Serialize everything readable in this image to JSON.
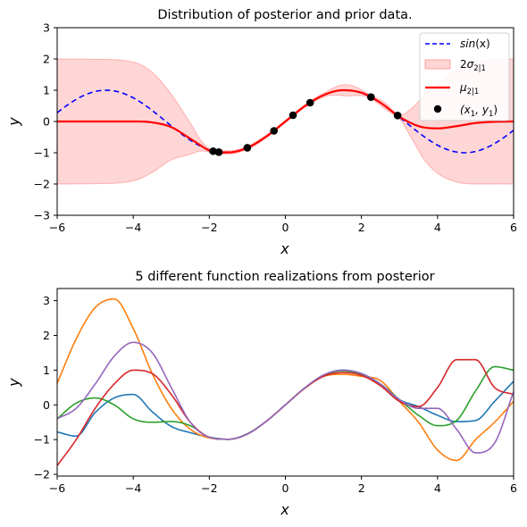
{
  "chart_data": [
    {
      "type": "line",
      "title": "Distribution of posterior and prior data.",
      "xlabel": "x",
      "ylabel": "y",
      "xlim": [
        -6,
        6
      ],
      "ylim": [
        -3,
        3
      ],
      "xticks": [
        "−6",
        "−4",
        "−2",
        "0",
        "2",
        "4",
        "6"
      ],
      "yticks": [
        "−3",
        "−2",
        "−1",
        "0",
        "1",
        "2",
        "3"
      ],
      "grid": false,
      "legend_position": "top-right",
      "legend": {
        "sin": {
          "label": "sin",
          "arg": "(x)"
        },
        "band": {
          "pre": "2",
          "sym": "σ",
          "sub": "2|1"
        },
        "mean": {
          "sym": "μ",
          "sub": "2|1"
        },
        "obs": {
          "label": "(x",
          "s1": "1",
          "mid": ", y",
          "s2": "1",
          "end": ")"
        }
      },
      "colors": {
        "sin": "#0000ff",
        "mean": "#ff0000",
        "band": "#ff0000",
        "points": "#000000"
      },
      "observations": {
        "x": [
          -1.9,
          -1.75,
          -1.0,
          -0.3,
          0.2,
          0.65,
          2.25,
          2.95
        ],
        "y": [
          -0.95,
          -0.98,
          -0.84,
          -0.3,
          0.2,
          0.6,
          0.78,
          0.19
        ]
      },
      "mean": {
        "x": [
          -6,
          -4,
          -3.5,
          -3,
          -2.5,
          -2,
          -1.9,
          -1.5,
          -1,
          -0.5,
          0,
          0.5,
          1,
          1.5,
          2,
          2.5,
          2.95,
          3.3,
          3.6,
          4,
          4.5,
          5,
          5.5,
          6
        ],
        "y": [
          0,
          0,
          -0.03,
          -0.18,
          -0.55,
          -0.93,
          -0.97,
          -0.99,
          -0.84,
          -0.48,
          0,
          0.48,
          0.84,
          1.0,
          0.92,
          0.6,
          0.19,
          -0.05,
          -0.18,
          -0.22,
          -0.15,
          -0.05,
          -0.01,
          0
        ]
      },
      "std2": {
        "x": [
          -6,
          -5,
          -4,
          -3.5,
          -3,
          -2.5,
          -2.2,
          -1.9,
          -1,
          0,
          1,
          1.6,
          2.25,
          2.6,
          2.95,
          3.3,
          3.7,
          4.2,
          5,
          6
        ],
        "y": [
          2.0,
          1.99,
          1.9,
          1.6,
          1.05,
          0.5,
          0.15,
          0.05,
          0.05,
          0.04,
          0.06,
          0.18,
          0.05,
          0.1,
          0.04,
          0.45,
          1.1,
          1.6,
          1.95,
          2.0
        ]
      }
    },
    {
      "type": "line",
      "title": "5 different function realizations from posterior",
      "xlabel": "x",
      "ylabel": "y",
      "xlim": [
        -6,
        6
      ],
      "ylim": [
        -2.05,
        3.35
      ],
      "xticks": [
        "−6",
        "−4",
        "−2",
        "0",
        "2",
        "4",
        "6"
      ],
      "yticks": [
        "−2",
        "−1",
        "0",
        "1",
        "2",
        "3"
      ],
      "grid": false,
      "series": [
        {
          "color": "#1f77b4",
          "x": [
            -6,
            -5.5,
            -5,
            -4.5,
            -4,
            -3.5,
            -3,
            -2.5,
            -2,
            -1.5,
            -1,
            -0.5,
            0,
            0.5,
            1,
            1.5,
            2,
            2.5,
            3,
            3.5,
            4,
            4.5,
            5,
            5.5,
            6
          ],
          "y": [
            -0.78,
            -0.9,
            -0.22,
            0.2,
            0.3,
            -0.2,
            -0.62,
            -0.8,
            -0.93,
            -0.99,
            -0.83,
            -0.47,
            0.0,
            0.48,
            0.85,
            1.0,
            0.9,
            0.6,
            0.15,
            -0.05,
            -0.3,
            -0.48,
            -0.45,
            0.1,
            0.68
          ]
        },
        {
          "color": "#ff7f0e",
          "x": [
            -6,
            -5.5,
            -5,
            -4.5,
            -4,
            -3.5,
            -3,
            -2.5,
            -2,
            -1.5,
            -1,
            -0.5,
            0,
            0.5,
            1,
            1.5,
            2,
            2.5,
            3,
            3.5,
            4,
            4.5,
            5,
            5.5,
            6
          ],
          "y": [
            0.62,
            1.9,
            2.8,
            3.05,
            2.2,
            0.9,
            -0.1,
            -0.7,
            -0.95,
            -0.99,
            -0.84,
            -0.47,
            0.0,
            0.47,
            0.82,
            0.88,
            0.82,
            0.7,
            0.1,
            -0.5,
            -1.3,
            -1.6,
            -1.0,
            -0.5,
            0.1
          ]
        },
        {
          "color": "#2ca02c",
          "x": [
            -6,
            -5.5,
            -5,
            -4.5,
            -4,
            -3.5,
            -3,
            -2.5,
            -2,
            -1.5,
            -1,
            -0.5,
            0,
            0.5,
            1,
            1.5,
            2,
            2.5,
            3,
            3.5,
            4,
            4.5,
            5,
            5.5,
            6
          ],
          "y": [
            -0.4,
            0.05,
            0.2,
            0.0,
            -0.4,
            -0.5,
            -0.48,
            -0.6,
            -0.93,
            -0.99,
            -0.84,
            -0.47,
            0.0,
            0.48,
            0.85,
            0.98,
            0.88,
            0.6,
            0.15,
            -0.3,
            -0.6,
            -0.45,
            0.4,
            1.1,
            1.0
          ]
        },
        {
          "color": "#d62728",
          "x": [
            -6,
            -5.5,
            -5,
            -4.5,
            -4,
            -3.5,
            -3,
            -2.5,
            -2,
            -1.5,
            -1,
            -0.5,
            0,
            0.5,
            1,
            1.5,
            2,
            2.5,
            3,
            3.5,
            4,
            4.5,
            5,
            5.5,
            6
          ],
          "y": [
            -1.75,
            -1.0,
            -0.1,
            0.6,
            1.0,
            0.9,
            0.3,
            -0.5,
            -0.93,
            -0.99,
            -0.84,
            -0.47,
            0.0,
            0.47,
            0.82,
            0.93,
            0.85,
            0.55,
            0.1,
            -0.05,
            0.5,
            1.3,
            1.3,
            0.5,
            0.3
          ]
        },
        {
          "color": "#9467bd",
          "x": [
            -6,
            -5.5,
            -5,
            -4.5,
            -4,
            -3.5,
            -3,
            -2.5,
            -2,
            -1.5,
            -1,
            -0.5,
            0,
            0.5,
            1,
            1.5,
            2,
            2.5,
            3,
            3.5,
            4,
            4.5,
            5,
            5.5,
            6
          ],
          "y": [
            -0.4,
            -0.1,
            0.6,
            1.4,
            1.8,
            1.5,
            0.5,
            -0.5,
            -0.93,
            -0.99,
            -0.84,
            -0.47,
            0.0,
            0.48,
            0.86,
            1.0,
            0.9,
            0.6,
            0.15,
            -0.1,
            -0.1,
            -0.7,
            -1.38,
            -1.1,
            0.38
          ]
        }
      ]
    }
  ]
}
